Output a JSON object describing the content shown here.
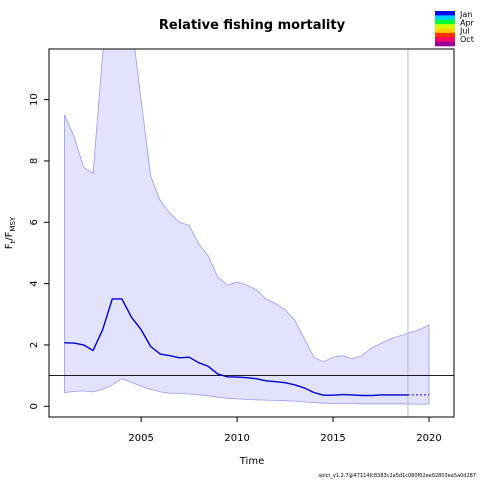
{
  "chart_data": {
    "type": "line",
    "title": "Relative fishing mortality",
    "xlabel": "Time",
    "ylabel": {
      "main": "F",
      "sub1": "t",
      "slash": "/F",
      "sub2": "MSY"
    },
    "xlim": [
      2000.2,
      2021.3
    ],
    "ylim": [
      -0.35,
      11.65
    ],
    "x_ticks": [
      2005,
      2010,
      2015,
      2020
    ],
    "y_ticks": [
      0,
      2,
      4,
      6,
      8,
      10
    ],
    "reference_line": 1,
    "vertical_line": 2018.9,
    "grid": false,
    "legend_position": "top-right",
    "legend": {
      "labels": [
        "Jan",
        "Apr",
        "Jul",
        "Oct"
      ],
      "colors": [
        "#0000ff",
        "#00ccff",
        "#00ff33",
        "#ccff00",
        "#ffcc00",
        "#ff3300",
        "#ff0066",
        "#990099"
      ]
    },
    "footnote": "spict_v1.2.7@47114fc8383c2a5d1c080f02ee02803ea5a0d287",
    "series": [
      {
        "role": "estimate",
        "color": "#0000cc",
        "x": [
          2001,
          2001.5,
          2002,
          2002.5,
          2003,
          2003.5,
          2004,
          2004.5,
          2005,
          2005.5,
          2006,
          2006.5,
          2007,
          2007.5,
          2008,
          2008.5,
          2009,
          2009.5,
          2010,
          2010.5,
          2011,
          2011.5,
          2012,
          2012.5,
          2013,
          2013.5,
          2014,
          2014.5,
          2015,
          2015.5,
          2016,
          2016.5,
          2017,
          2017.5,
          2018,
          2018.5,
          2018.9
        ],
        "y": [
          2.07,
          2.06,
          2.0,
          1.82,
          2.5,
          3.5,
          3.5,
          2.9,
          2.5,
          1.95,
          1.7,
          1.65,
          1.58,
          1.6,
          1.42,
          1.3,
          1.05,
          0.96,
          0.95,
          0.93,
          0.9,
          0.83,
          0.8,
          0.77,
          0.7,
          0.6,
          0.45,
          0.36,
          0.36,
          0.38,
          0.37,
          0.35,
          0.35,
          0.37,
          0.37,
          0.37,
          0.37
        ]
      },
      {
        "role": "prediction",
        "color": "#0000cc",
        "dashed": true,
        "x": [
          2018.9,
          2019.5,
          2020
        ],
        "y": [
          0.37,
          0.37,
          0.37
        ]
      }
    ],
    "confidence_band": {
      "fill": "#e2e2ff",
      "stroke": "#9999ee",
      "x": [
        2001,
        2001.5,
        2002,
        2002.5,
        2003,
        2003.5,
        2004,
        2004.5,
        2005,
        2005.5,
        2006,
        2006.5,
        2007,
        2007.5,
        2008,
        2008.5,
        2009,
        2009.5,
        2010,
        2010.5,
        2011,
        2011.5,
        2012,
        2012.5,
        2013,
        2013.5,
        2014,
        2014.5,
        2015,
        2015.5,
        2016,
        2016.5,
        2017,
        2017.5,
        2018,
        2018.5,
        2019,
        2019.5,
        2020
      ],
      "upper": [
        9.5,
        8.8,
        7.8,
        7.6,
        11.5,
        13.5,
        13.5,
        12.5,
        10.0,
        7.5,
        6.7,
        6.3,
        6.0,
        5.9,
        5.3,
        4.9,
        4.2,
        3.95,
        4.05,
        3.95,
        3.8,
        3.5,
        3.35,
        3.15,
        2.8,
        2.2,
        1.6,
        1.45,
        1.6,
        1.65,
        1.55,
        1.65,
        1.9,
        2.05,
        2.2,
        2.3,
        2.4,
        2.5,
        2.65
      ],
      "lower": [
        0.45,
        0.48,
        0.5,
        0.47,
        0.55,
        0.7,
        0.9,
        0.78,
        0.65,
        0.55,
        0.47,
        0.43,
        0.42,
        0.4,
        0.37,
        0.34,
        0.3,
        0.26,
        0.24,
        0.22,
        0.21,
        0.2,
        0.19,
        0.18,
        0.17,
        0.14,
        0.12,
        0.1,
        0.09,
        0.09,
        0.09,
        0.08,
        0.08,
        0.08,
        0.08,
        0.08,
        0.07,
        0.07,
        0.07
      ]
    }
  }
}
